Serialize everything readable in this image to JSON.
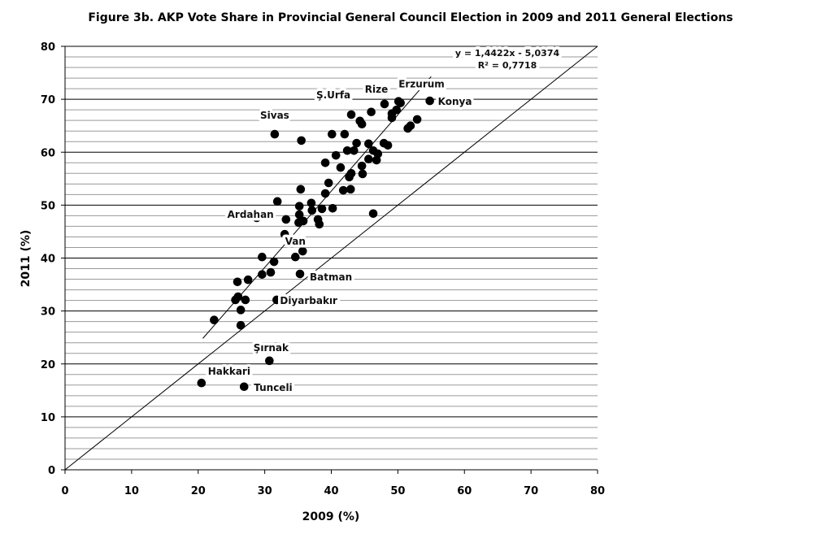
{
  "chart_data": {
    "type": "scatter",
    "title": "Figure 3b. AKP Vote Share in Provincial General Council Election in 2009 and 2011 General Elections",
    "xlabel": "2009 (%)",
    "ylabel": "2011 (%)",
    "xlim": [
      0,
      80
    ],
    "ylim": [
      0,
      80
    ],
    "xticks": [
      0,
      10,
      20,
      30,
      40,
      50,
      60,
      70,
      80
    ],
    "yticks": [
      0,
      10,
      20,
      30,
      40,
      50,
      60,
      70,
      80
    ],
    "grid": {
      "major_y": 10,
      "minor_y": 2
    },
    "trendline": {
      "slope": 1.4422,
      "intercept": -5.0374,
      "x_range": [
        20.7,
        55
      ],
      "equation": "y = 1,4422x - 5,0374",
      "r2": "R² = 0,7718"
    },
    "reference_line": "y = x",
    "points": [
      {
        "x": 54.8,
        "y": 69.7,
        "label": "Konya"
      },
      {
        "x": 48.0,
        "y": 69.1,
        "label": "Rize"
      },
      {
        "x": 50.1,
        "y": 69.6,
        "label": "Erzurum"
      },
      {
        "x": 50.4,
        "y": 69.3
      },
      {
        "x": 49.8,
        "y": 68.0
      },
      {
        "x": 49.1,
        "y": 67.3
      },
      {
        "x": 49.1,
        "y": 66.5
      },
      {
        "x": 46.0,
        "y": 67.6
      },
      {
        "x": 43.0,
        "y": 67.1,
        "label": "Ş.Urfa"
      },
      {
        "x": 44.3,
        "y": 65.9
      },
      {
        "x": 44.6,
        "y": 65.3
      },
      {
        "x": 52.9,
        "y": 66.2
      },
      {
        "x": 51.9,
        "y": 65.0
      },
      {
        "x": 51.5,
        "y": 64.5
      },
      {
        "x": 31.5,
        "y": 63.4,
        "label": "Sivas"
      },
      {
        "x": 35.5,
        "y": 62.2
      },
      {
        "x": 40.1,
        "y": 63.4
      },
      {
        "x": 42.0,
        "y": 63.4
      },
      {
        "x": 43.8,
        "y": 61.7
      },
      {
        "x": 42.4,
        "y": 60.3
      },
      {
        "x": 43.4,
        "y": 60.3
      },
      {
        "x": 45.6,
        "y": 61.6
      },
      {
        "x": 47.9,
        "y": 61.7
      },
      {
        "x": 48.5,
        "y": 61.3
      },
      {
        "x": 40.7,
        "y": 59.4
      },
      {
        "x": 46.3,
        "y": 60.3
      },
      {
        "x": 47.0,
        "y": 59.7
      },
      {
        "x": 46.8,
        "y": 58.5
      },
      {
        "x": 45.6,
        "y": 58.7
      },
      {
        "x": 39.1,
        "y": 58.0
      },
      {
        "x": 41.4,
        "y": 57.1
      },
      {
        "x": 44.6,
        "y": 57.4
      },
      {
        "x": 44.7,
        "y": 55.9
      },
      {
        "x": 43.0,
        "y": 56.0
      },
      {
        "x": 42.7,
        "y": 55.3
      },
      {
        "x": 39.6,
        "y": 54.2
      },
      {
        "x": 39.1,
        "y": 52.2
      },
      {
        "x": 41.8,
        "y": 52.8
      },
      {
        "x": 42.9,
        "y": 53.0
      },
      {
        "x": 35.4,
        "y": 53.0
      },
      {
        "x": 31.9,
        "y": 50.7
      },
      {
        "x": 37.0,
        "y": 50.4
      },
      {
        "x": 35.2,
        "y": 49.8
      },
      {
        "x": 37.1,
        "y": 49.0
      },
      {
        "x": 38.6,
        "y": 49.3
      },
      {
        "x": 40.2,
        "y": 49.4
      },
      {
        "x": 46.3,
        "y": 48.4
      },
      {
        "x": 28.8,
        "y": 47.6
      },
      {
        "x": 33.2,
        "y": 47.3
      },
      {
        "x": 35.2,
        "y": 48.2
      },
      {
        "x": 35.1,
        "y": 46.7
      },
      {
        "x": 35.8,
        "y": 47.0
      },
      {
        "x": 38.0,
        "y": 47.3
      },
      {
        "x": 38.2,
        "y": 46.4
      },
      {
        "x": 33.0,
        "y": 44.5,
        "label": "Ardahan"
      },
      {
        "x": 35.7,
        "y": 41.3,
        "label": "Van"
      },
      {
        "x": 29.6,
        "y": 40.2
      },
      {
        "x": 31.4,
        "y": 39.3
      },
      {
        "x": 34.6,
        "y": 40.2
      },
      {
        "x": 30.9,
        "y": 37.3
      },
      {
        "x": 29.6,
        "y": 36.9
      },
      {
        "x": 35.3,
        "y": 37.0,
        "label": "Batman"
      },
      {
        "x": 27.5,
        "y": 35.9
      },
      {
        "x": 25.9,
        "y": 35.5
      },
      {
        "x": 26.0,
        "y": 32.7
      },
      {
        "x": 25.6,
        "y": 32.1
      },
      {
        "x": 27.1,
        "y": 32.1
      },
      {
        "x": 31.8,
        "y": 32.1,
        "label": "Diyarbakır"
      },
      {
        "x": 26.4,
        "y": 30.2
      },
      {
        "x": 22.4,
        "y": 28.3
      },
      {
        "x": 26.4,
        "y": 27.3
      },
      {
        "x": 30.7,
        "y": 20.6,
        "label": "Şırnak"
      },
      {
        "x": 20.5,
        "y": 16.4,
        "label": "Hakkari"
      },
      {
        "x": 26.9,
        "y": 15.7,
        "label": "Tunceli"
      }
    ]
  }
}
